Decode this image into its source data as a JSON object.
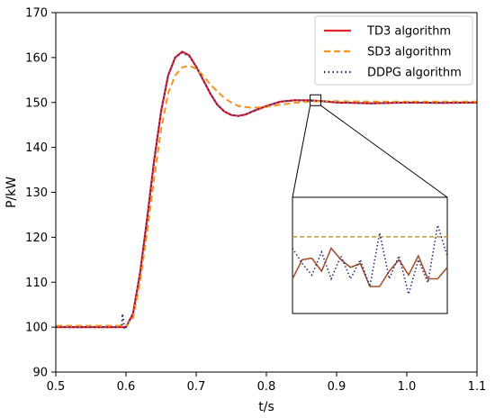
{
  "chart_data": {
    "type": "line",
    "xlabel": "t/s",
    "ylabel": "P/kW",
    "xlim": [
      0.5,
      1.1
    ],
    "ylim": [
      90,
      170
    ],
    "x_ticks": [
      "0.5",
      "0.6",
      "0.7",
      "0.8",
      "0.9",
      "1.0",
      "1.1"
    ],
    "y_ticks": [
      "90",
      "100",
      "110",
      "120",
      "130",
      "140",
      "150",
      "160",
      "170"
    ],
    "grid": false,
    "legend_position": "top-right",
    "series": [
      {
        "name": "TD3 algorithm",
        "color": "#e8202a",
        "style": "solid",
        "x": [
          0.5,
          0.6,
          0.61,
          0.62,
          0.63,
          0.64,
          0.65,
          0.66,
          0.67,
          0.68,
          0.69,
          0.7,
          0.71,
          0.72,
          0.73,
          0.74,
          0.75,
          0.76,
          0.77,
          0.78,
          0.8,
          0.82,
          0.84,
          0.86,
          0.88,
          0.9,
          0.95,
          1.0,
          1.05,
          1.1
        ],
        "y": [
          100,
          100,
          103,
          112,
          124,
          137,
          148,
          156,
          160,
          161.3,
          160.5,
          158,
          155,
          152,
          149.5,
          148,
          147.2,
          147,
          147.3,
          148,
          149.2,
          150.2,
          150.5,
          150.5,
          150.3,
          150,
          149.8,
          150,
          149.9,
          150
        ]
      },
      {
        "name": "SD3 algorithm",
        "color": "#f7941d",
        "style": "dashed",
        "x": [
          0.5,
          0.6,
          0.61,
          0.62,
          0.63,
          0.64,
          0.65,
          0.66,
          0.67,
          0.68,
          0.69,
          0.7,
          0.71,
          0.72,
          0.73,
          0.74,
          0.75,
          0.76,
          0.78,
          0.8,
          0.82,
          0.84,
          0.86,
          0.88,
          0.9,
          0.95,
          1.0,
          1.05,
          1.1
        ],
        "y": [
          100.3,
          100.3,
          102,
          110,
          121,
          133,
          144,
          152,
          156,
          157.8,
          158.2,
          157.5,
          156,
          154,
          152.5,
          151,
          150,
          149.2,
          148.8,
          149,
          149.5,
          149.9,
          150.2,
          150.3,
          150.3,
          150.2,
          150.2,
          150.2,
          150.2
        ]
      },
      {
        "name": "DDPG algorithm",
        "color": "#2b2a7a",
        "style": "dotted",
        "x": [
          0.5,
          0.594,
          0.595,
          0.598,
          0.6,
          0.61,
          0.62,
          0.63,
          0.64,
          0.65,
          0.66,
          0.67,
          0.68,
          0.69,
          0.7,
          0.71,
          0.72,
          0.73,
          0.74,
          0.75,
          0.76,
          0.77,
          0.78,
          0.8,
          0.82,
          0.84,
          0.86,
          0.88,
          0.9,
          0.95,
          1.0,
          1.05,
          1.1
        ],
        "y": [
          100,
          100,
          103,
          99.5,
          100,
          103,
          112,
          124,
          137,
          148,
          156,
          160,
          161.1,
          160.3,
          158,
          155,
          152,
          149.5,
          148,
          147.2,
          147,
          147.3,
          148,
          149.2,
          150.2,
          150.5,
          150.4,
          150.3,
          150,
          149.8,
          150,
          149.9,
          150
        ]
      }
    ],
    "inset": {
      "type": "line",
      "zoom_center": [
        0.87,
        150.5
      ],
      "series": [
        {
          "name": "TD3 algorithm",
          "color": "#a0522d",
          "y": [
            0.3,
            0.55,
            0.57,
            0.4,
            0.7,
            0.55,
            0.45,
            0.5,
            0.2,
            0.2,
            0.4,
            0.55,
            0.35,
            0.6,
            0.3,
            0.3,
            0.45
          ]
        },
        {
          "name": "SD3 algorithm",
          "color": "#c8a032",
          "y": [
            0.85,
            0.85,
            0.85,
            0.85,
            0.85,
            0.85,
            0.85,
            0.85,
            0.85,
            0.85,
            0.85,
            0.85,
            0.85,
            0.85,
            0.85,
            0.85,
            0.85
          ]
        },
        {
          "name": "DDPG algorithm",
          "color": "#2b2a7a",
          "y": [
            0.7,
            0.5,
            0.35,
            0.65,
            0.3,
            0.6,
            0.3,
            0.55,
            0.2,
            0.9,
            0.3,
            0.6,
            0.1,
            0.55,
            0.25,
            1.0,
            0.6
          ]
        }
      ]
    }
  }
}
